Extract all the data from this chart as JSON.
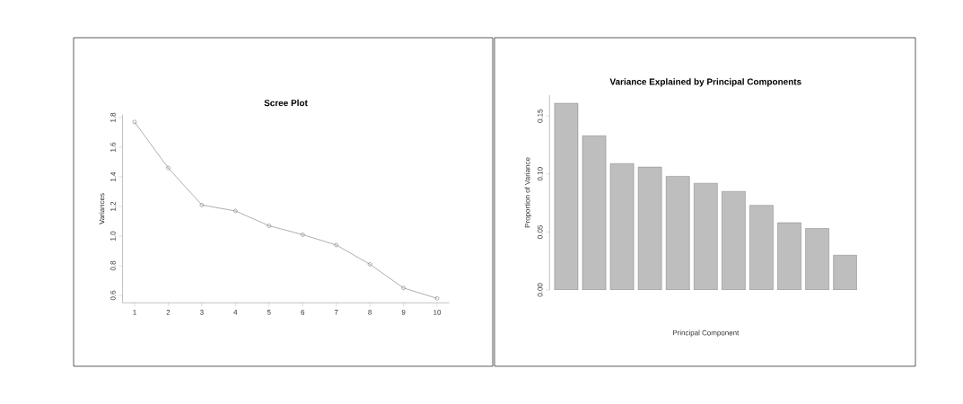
{
  "chart_data": [
    {
      "type": "line",
      "title": "Scree Plot",
      "ylabel": "Variances",
      "x": [
        1,
        2,
        3,
        4,
        5,
        6,
        7,
        8,
        9,
        10
      ],
      "series": [
        {
          "color": "#a6a6a6",
          "values": [
            1.77,
            1.46,
            1.21,
            1.17,
            1.07,
            1.01,
            0.94,
            0.81,
            0.65,
            0.58
          ]
        }
      ],
      "xlim": [
        0.64,
        10.36
      ],
      "ylim": [
        0.55,
        1.82
      ],
      "xticks": [
        1,
        2,
        3,
        4,
        5,
        6,
        7,
        8,
        9,
        10
      ],
      "yticks": [
        0.6,
        0.8,
        {
          "value": 1,
          "label": "1.0"
        },
        1.2,
        1.4,
        1.6,
        1.8
      ],
      "marker": "circle",
      "line_style": "solid",
      "grid": false
    },
    {
      "type": "bar",
      "title": "Variance Explained by Principal Components",
      "xlabel": "Principal Component",
      "ylabel": "Proportion of Variance",
      "categories": [
        null,
        null,
        null,
        null,
        null,
        null,
        null,
        null,
        null,
        null,
        null
      ],
      "series": [
        {
          "color": "#bebebe",
          "values": [
            0.161,
            0.133,
            0.109,
            0.106,
            0.098,
            0.092,
            0.085,
            0.073,
            0.058,
            0.053,
            0.03
          ]
        }
      ],
      "ylim": [
        0,
        0.168
      ],
      "yticks": [
        {
          "value": 0,
          "label": "0.00"
        },
        {
          "value": 0.05,
          "label": "0.05"
        },
        {
          "value": 0.1,
          "label": "0.10"
        },
        {
          "value": 0.15,
          "label": "0.15"
        }
      ],
      "tick_labels": "y",
      "grid": false
    }
  ]
}
